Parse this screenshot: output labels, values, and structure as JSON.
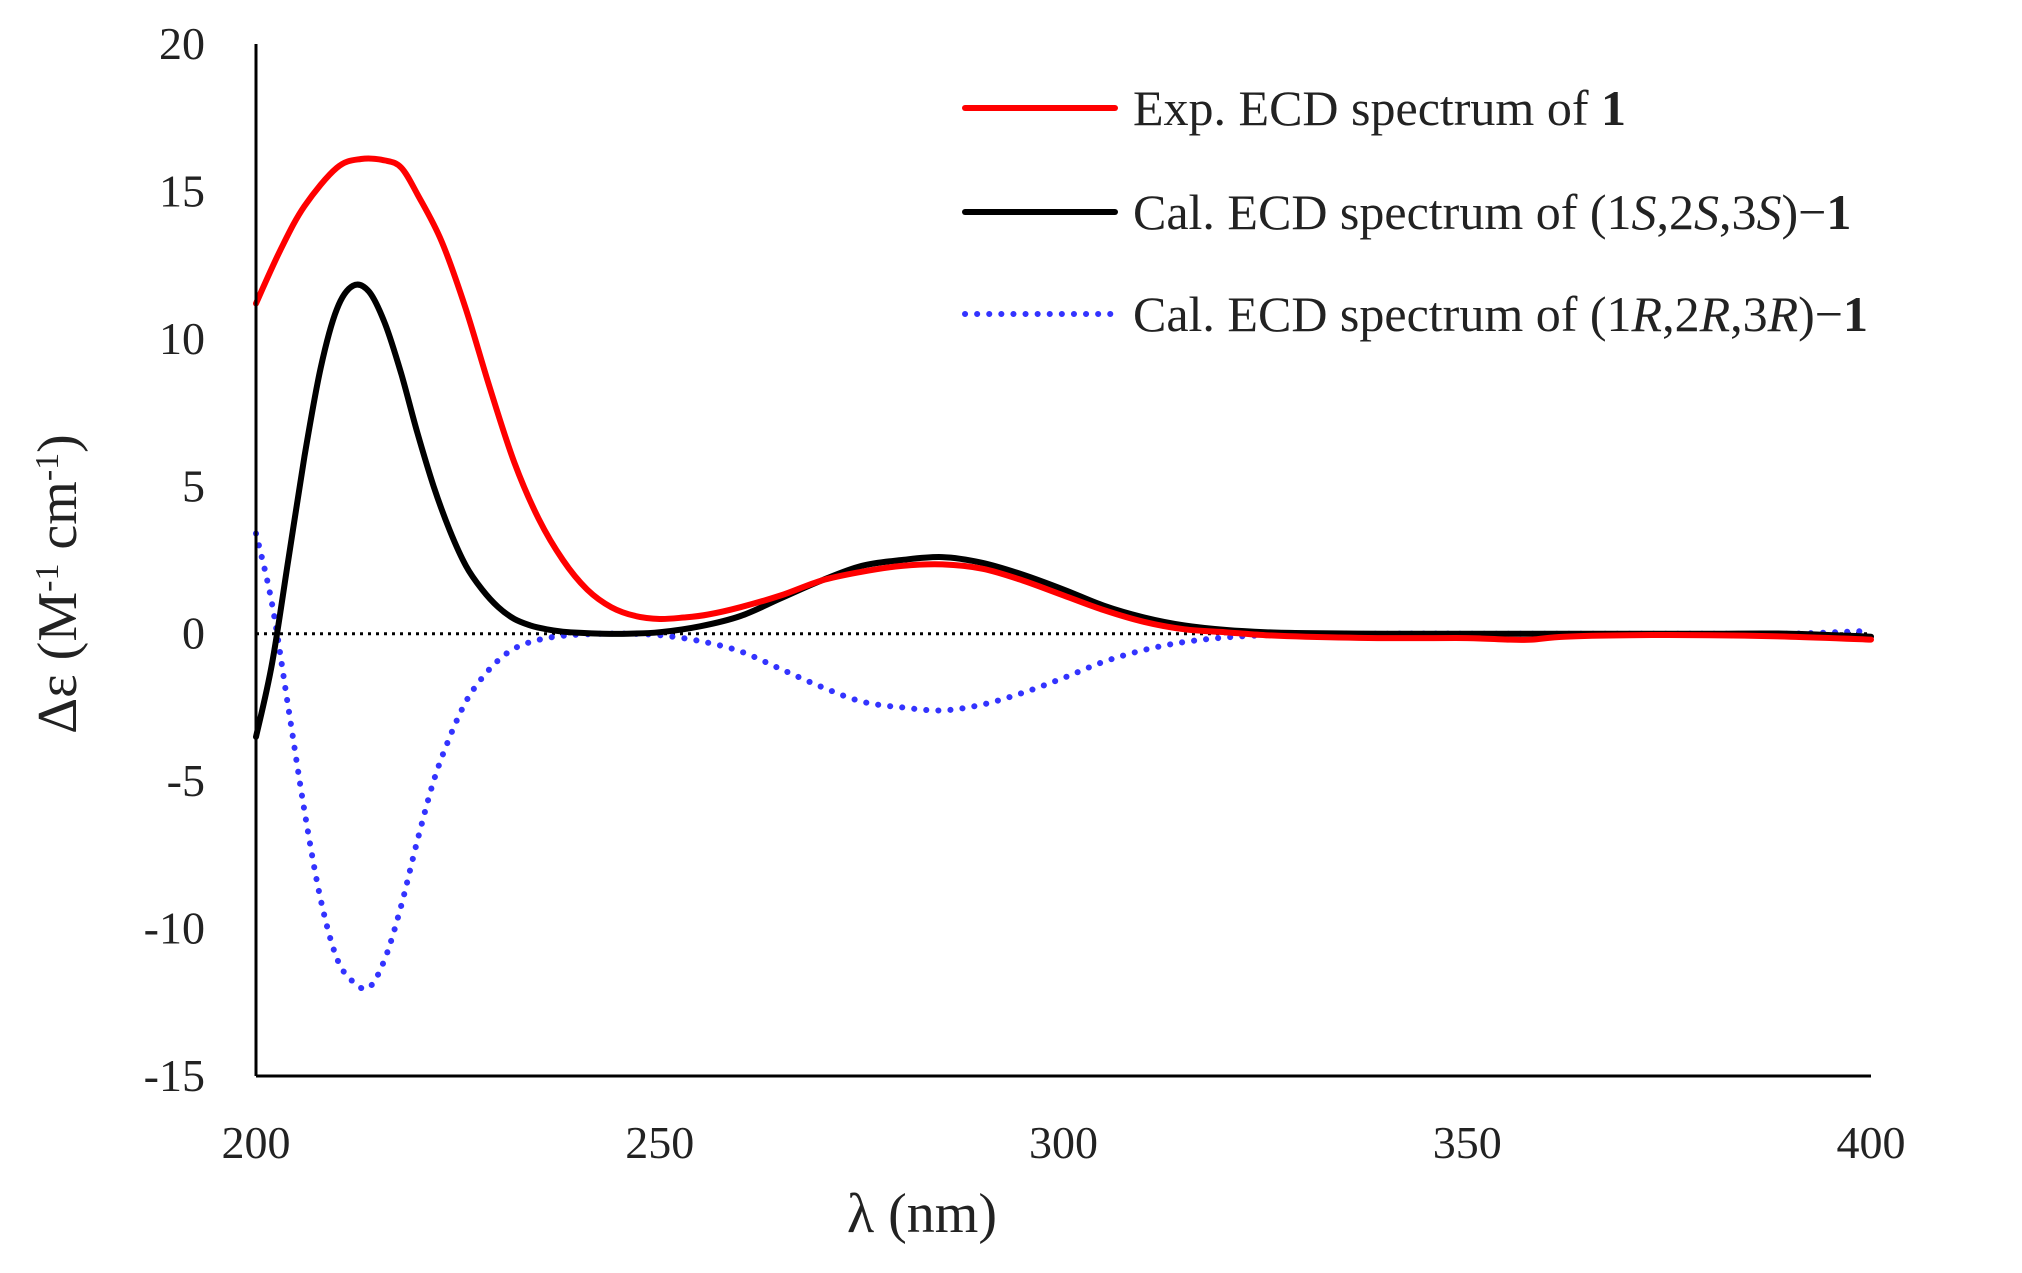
{
  "chart_data": {
    "type": "line",
    "title": "",
    "xlabel": "λ (nm)",
    "ylabel_parts": [
      "Δε (M",
      "-1",
      " cm",
      "-1",
      ")"
    ],
    "xlim": [
      200,
      400
    ],
    "ylim": [
      -15,
      20
    ],
    "xticks": [
      200,
      250,
      300,
      350,
      400
    ],
    "yticks": [
      20,
      15,
      10,
      5,
      0,
      -5,
      -10,
      -15
    ],
    "grid": false,
    "zero_reference": {
      "y": 0,
      "style": "dotted",
      "color": "#000000"
    },
    "legend_position": "top-right",
    "series": [
      {
        "name": "Exp. ECD spectrum of 1",
        "legend_parts": [
          {
            "t": "Exp. ECD spectrum of  "
          },
          {
            "t": "1",
            "s": "bold"
          }
        ],
        "color": "#ff0000",
        "style": "solid",
        "x": [
          200,
          203,
          206,
          210,
          213,
          216,
          218,
          220,
          223,
          226,
          229,
          232,
          235,
          238,
          241,
          244,
          247,
          250,
          253,
          256,
          260,
          265,
          270,
          275,
          280,
          285,
          290,
          295,
          300,
          305,
          310,
          315,
          320,
          325,
          330,
          340,
          350,
          355,
          358,
          362,
          370,
          380,
          390,
          400
        ],
        "y": [
          11.2,
          13.0,
          14.5,
          15.8,
          16.1,
          16.05,
          15.8,
          14.9,
          13.3,
          11.0,
          8.3,
          5.8,
          3.9,
          2.5,
          1.5,
          0.9,
          0.6,
          0.5,
          0.55,
          0.65,
          0.9,
          1.3,
          1.8,
          2.1,
          2.3,
          2.35,
          2.2,
          1.8,
          1.3,
          0.8,
          0.4,
          0.15,
          0.05,
          -0.05,
          -0.1,
          -0.15,
          -0.15,
          -0.2,
          -0.2,
          -0.1,
          -0.05,
          -0.05,
          -0.1,
          -0.2
        ]
      },
      {
        "name": "Cal. ECD spectrum of (1S,2S,3S)−1",
        "legend_parts": [
          {
            "t": "Cal. ECD spectrum of (1"
          },
          {
            "t": "S",
            "s": "ital"
          },
          {
            "t": ",2"
          },
          {
            "t": "S",
            "s": "ital"
          },
          {
            "t": ",3"
          },
          {
            "t": "S",
            "s": "ital"
          },
          {
            "t": ")−"
          },
          {
            "t": "1",
            "s": "bold"
          }
        ],
        "color": "#000000",
        "style": "solid",
        "x": [
          200,
          202,
          204,
          206,
          208,
          210,
          212,
          214,
          216,
          218,
          220,
          222,
          224,
          226,
          228,
          230,
          232,
          234,
          236,
          238,
          240,
          243,
          246,
          250,
          255,
          260,
          265,
          270,
          275,
          280,
          285,
          290,
          295,
          300,
          305,
          310,
          315,
          320,
          325,
          330,
          340,
          350,
          360,
          370,
          380,
          390,
          400
        ],
        "y": [
          -3.5,
          -1.0,
          2.5,
          6.0,
          9.0,
          11.0,
          11.8,
          11.6,
          10.5,
          8.8,
          6.8,
          5.0,
          3.5,
          2.3,
          1.5,
          0.9,
          0.5,
          0.28,
          0.15,
          0.07,
          0.03,
          0.0,
          0.0,
          0.05,
          0.25,
          0.6,
          1.2,
          1.8,
          2.3,
          2.5,
          2.6,
          2.4,
          2.0,
          1.5,
          0.95,
          0.55,
          0.28,
          0.13,
          0.05,
          0.02,
          0.0,
          0.0,
          0.0,
          0.0,
          0.0,
          0.0,
          -0.1
        ]
      },
      {
        "name": "Cal. ECD spectrum of (1R,2R,3R)−1",
        "legend_parts": [
          {
            "t": "Cal. ECD spectrum of (1"
          },
          {
            "t": "R",
            "s": "ital"
          },
          {
            "t": ",2"
          },
          {
            "t": "R",
            "s": "ital"
          },
          {
            "t": ",3"
          },
          {
            "t": "R",
            "s": "ital"
          },
          {
            "t": ")−"
          },
          {
            "t": "1",
            "s": "bold"
          }
        ],
        "color": "#3333ff",
        "style": "dotted",
        "x": [
          200,
          202,
          204,
          206,
          208,
          210,
          212,
          214,
          216,
          218,
          220,
          222,
          224,
          226,
          228,
          230,
          232,
          234,
          236,
          238,
          240,
          243,
          246,
          250,
          255,
          260,
          265,
          270,
          275,
          280,
          285,
          290,
          295,
          300,
          305,
          310,
          315,
          320,
          325,
          330,
          340,
          350,
          360,
          370,
          380,
          390,
          400
        ],
        "y": [
          3.4,
          1.0,
          -2.5,
          -6.0,
          -9.0,
          -11.0,
          -11.8,
          -12.0,
          -11.0,
          -9.2,
          -7.0,
          -5.0,
          -3.5,
          -2.3,
          -1.5,
          -0.9,
          -0.5,
          -0.28,
          -0.15,
          -0.07,
          -0.03,
          0.0,
          0.0,
          -0.05,
          -0.25,
          -0.6,
          -1.2,
          -1.8,
          -2.3,
          -2.5,
          -2.6,
          -2.4,
          -2.0,
          -1.5,
          -0.95,
          -0.55,
          -0.28,
          -0.13,
          -0.05,
          -0.02,
          0.0,
          0.0,
          0.0,
          0.0,
          0.0,
          0.0,
          0.1
        ]
      }
    ]
  }
}
